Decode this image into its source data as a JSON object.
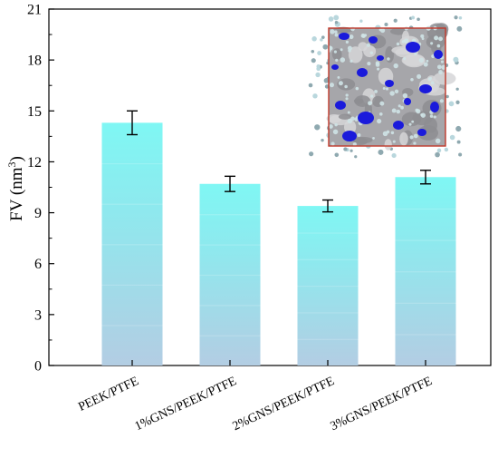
{
  "chart_data": {
    "type": "bar",
    "categories": [
      "PEEK/PTFE",
      "1%GNS/PEEK/PTFE",
      "2%GNS/PEEK/PTFE",
      "3%GNS/PEEK/PTFE"
    ],
    "values": [
      14.3,
      10.7,
      9.4,
      11.1
    ],
    "errors": [
      0.7,
      0.45,
      0.35,
      0.4
    ],
    "ylabel_main": "FV (nm",
    "ylabel_sup": "3",
    "ylabel_close": ")",
    "ylim": [
      0,
      21
    ],
    "yticks": [
      0,
      3,
      6,
      9,
      12,
      15,
      18,
      21
    ],
    "grid": false,
    "bar_color_top": "#7ff7f4",
    "bar_color_bottom": "#b3cde3",
    "inset_border_color": "#c0392b",
    "inset_blob_color": "#1a1adb"
  }
}
